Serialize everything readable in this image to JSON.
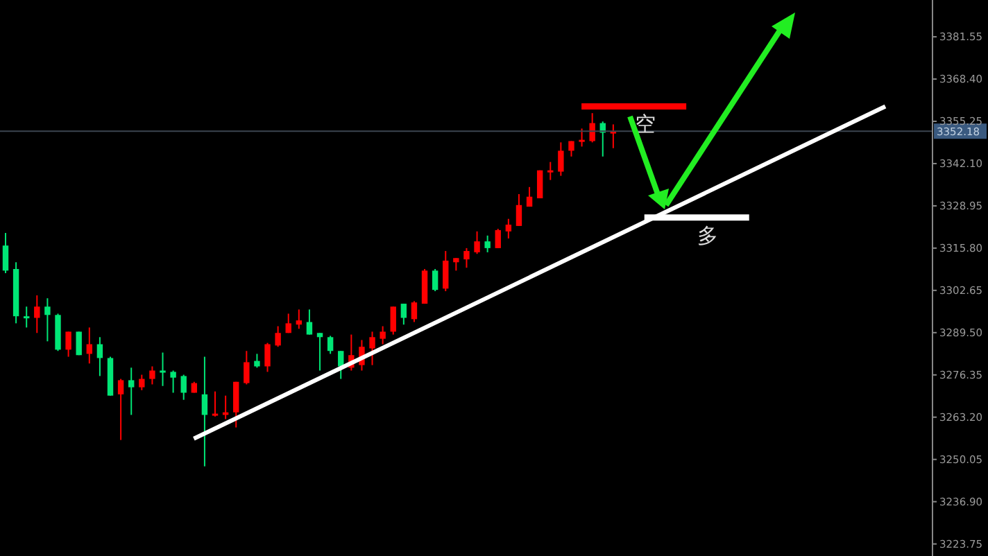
{
  "chart_data": {
    "type": "candlestick",
    "categories": [
      null,
      null,
      null,
      null,
      null,
      null,
      null,
      null,
      null,
      null,
      null,
      null,
      null,
      null,
      null,
      null,
      null,
      null,
      null,
      null,
      null,
      null,
      null,
      null,
      null,
      null,
      null,
      null,
      null,
      null,
      null,
      null,
      null,
      null,
      null,
      null,
      null,
      null,
      null,
      null,
      null,
      null,
      null,
      null,
      null,
      null,
      null,
      null,
      null,
      null,
      null,
      null,
      null,
      null,
      null,
      null,
      null,
      null,
      null,
      null,
      null,
      null,
      null,
      null,
      null,
      null,
      null,
      null,
      null,
      null,
      null,
      null,
      null,
      null,
      null,
      null,
      null,
      null,
      null,
      null,
      null,
      null,
      null,
      null,
      null,
      null,
      null,
      null,
      null
    ],
    "ohlc": [
      [
        3316.6,
        3320.5,
        3308.0,
        3308.8
      ],
      [
        3309.3,
        3311.4,
        3292.4,
        3294.6
      ],
      [
        3294.6,
        3297.6,
        3291.1,
        3294.1
      ],
      [
        3294.1,
        3301.1,
        3289.4,
        3297.6
      ],
      [
        3297.6,
        3300.2,
        3286.8,
        3295.0
      ],
      [
        3295.0,
        3295.4,
        3283.8,
        3284.2
      ],
      [
        3284.2,
        3289.8,
        3282.0,
        3289.8
      ],
      [
        3289.8,
        3289.8,
        3282.5,
        3282.5
      ],
      [
        3282.9,
        3291.1,
        3279.9,
        3285.9
      ],
      [
        3285.9,
        3288.1,
        3276.0,
        3281.6
      ],
      [
        3281.6,
        3282.0,
        3269.9,
        3269.9
      ],
      [
        3270.3,
        3275.1,
        3256.1,
        3274.7
      ],
      [
        3274.7,
        3278.6,
        3263.9,
        3272.5
      ],
      [
        3272.5,
        3276.4,
        3271.6,
        3275.1
      ],
      [
        3275.1,
        3279.0,
        3273.4,
        3277.7
      ],
      [
        3277.7,
        3283.3,
        3272.9,
        3277.3
      ],
      [
        3277.3,
        3277.7,
        3270.8,
        3275.5
      ],
      [
        3276.0,
        3276.4,
        3268.6,
        3270.8
      ],
      [
        3270.8,
        3274.2,
        3270.8,
        3273.8
      ],
      [
        3270.3,
        3282.0,
        3247.9,
        3263.9
      ],
      [
        3263.9,
        3271.2,
        3263.4,
        3264.3
      ],
      [
        3263.9,
        3269.9,
        3262.6,
        3264.7
      ],
      [
        3264.7,
        3274.2,
        3260.0,
        3274.2
      ],
      [
        3273.8,
        3283.8,
        3273.4,
        3280.3
      ],
      [
        3280.7,
        3282.9,
        3278.6,
        3279.0
      ],
      [
        3279.0,
        3286.3,
        3277.3,
        3285.9
      ],
      [
        3285.5,
        3291.5,
        3285.1,
        3289.4
      ],
      [
        3289.4,
        3295.4,
        3289.4,
        3292.4
      ],
      [
        3292.0,
        3296.7,
        3290.7,
        3293.3
      ],
      [
        3292.8,
        3296.7,
        3288.9,
        3288.9
      ],
      [
        3289.4,
        3289.4,
        3277.7,
        3288.1
      ],
      [
        3288.1,
        3288.5,
        3282.9,
        3283.8
      ],
      [
        3283.8,
        3283.8,
        3275.1,
        3279.0
      ],
      [
        3278.6,
        3288.9,
        3277.7,
        3282.5
      ],
      [
        3279.4,
        3287.2,
        3277.7,
        3285.1
      ],
      [
        3284.6,
        3289.8,
        3279.4,
        3288.1
      ],
      [
        3287.6,
        3291.5,
        3285.9,
        3289.8
      ],
      [
        3289.8,
        3297.6,
        3288.9,
        3297.6
      ],
      [
        3298.5,
        3298.5,
        3292.0,
        3294.1
      ],
      [
        3293.7,
        3299.3,
        3292.8,
        3298.9
      ],
      [
        3298.5,
        3309.3,
        3298.5,
        3308.8
      ],
      [
        3308.8,
        3309.3,
        3302.4,
        3302.8
      ],
      [
        3303.2,
        3314.9,
        3302.4,
        3311.9
      ],
      [
        3311.4,
        3312.7,
        3308.8,
        3312.7
      ],
      [
        3312.3,
        3315.8,
        3309.7,
        3314.9
      ],
      [
        3314.5,
        3321.0,
        3314.0,
        3317.9
      ],
      [
        3317.9,
        3319.7,
        3314.5,
        3315.8
      ],
      [
        3315.8,
        3321.8,
        3315.8,
        3321.4
      ],
      [
        3321.0,
        3324.9,
        3318.8,
        3323.1
      ],
      [
        3322.7,
        3332.6,
        3322.7,
        3329.2
      ],
      [
        3328.7,
        3334.8,
        3328.7,
        3331.8
      ],
      [
        3331.3,
        3340.0,
        3331.3,
        3340.0
      ],
      [
        3339.6,
        3342.6,
        3337.0,
        3340.0
      ],
      [
        3339.6,
        3348.7,
        3338.3,
        3346.1
      ],
      [
        3346.1,
        3349.1,
        3344.3,
        3349.1
      ],
      [
        3349.1,
        3353.0,
        3347.4,
        3349.5
      ],
      [
        3349.1,
        3357.8,
        3348.7,
        3354.7
      ],
      [
        3354.7,
        3355.2,
        3344.3,
        3351.7
      ],
      [
        3351.9,
        3354.3,
        3346.9,
        3352.1
      ],
      null,
      null,
      null,
      null,
      null,
      null,
      null,
      null,
      null,
      null,
      null,
      null,
      null,
      null,
      null,
      null,
      null,
      null,
      null,
      null,
      null,
      null,
      null,
      null,
      null,
      null,
      null,
      null,
      null,
      null
    ],
    "colors": [
      "#00e676",
      "#00e676",
      "#00e676",
      "#ff0000",
      "#00e676",
      "#00e676",
      "#ff0000",
      "#00e676",
      "#ff0000",
      "#00e676",
      "#00e676",
      "#ff0000",
      "#00e676",
      "#ff0000",
      "#ff0000",
      "#00e676",
      "#00e676",
      "#00e676",
      "#ff0000",
      "#00e676",
      "#ff0000",
      "#ff0000",
      "#ff0000",
      "#ff0000",
      "#00e676",
      "#ff0000",
      "#ff0000",
      "#ff0000",
      "#ff0000",
      "#00e676",
      "#00e676",
      "#00e676",
      "#00e676",
      "#ff0000",
      "#ff0000",
      "#ff0000",
      "#ff0000",
      "#ff0000",
      "#00e676",
      "#ff0000",
      "#ff0000",
      "#00e676",
      "#ff0000",
      "#ff0000",
      "#ff0000",
      "#ff0000",
      "#00e676",
      "#ff0000",
      "#ff0000",
      "#ff0000",
      "#ff0000",
      "#ff0000",
      "#ff0000",
      "#ff0000",
      "#ff0000",
      "#ff0000",
      "#ff0000",
      "#00e676",
      "#ff0000",
      null,
      null,
      null,
      null,
      null,
      null,
      null,
      null,
      null,
      null,
      null,
      null,
      null,
      null,
      null,
      null,
      null,
      null,
      null,
      null,
      null,
      null,
      null,
      null,
      null,
      null,
      null,
      null,
      null,
      null
    ],
    "series": [
      {
        "type": "line",
        "color": "#ffffff",
        "values": [
          null,
          null,
          null,
          null,
          null,
          null,
          null,
          null,
          null,
          null,
          null,
          null,
          null,
          null,
          null,
          null,
          null,
          null,
          3256.5,
          null,
          null,
          null,
          null,
          null,
          null,
          null,
          null,
          null,
          null,
          null,
          null,
          null,
          null,
          null,
          null,
          null,
          null,
          null,
          null,
          null,
          null,
          null,
          null,
          null,
          null,
          null,
          null,
          null,
          null,
          null,
          null,
          null,
          null,
          null,
          null,
          null,
          null,
          null,
          null,
          null,
          null,
          null,
          null,
          null,
          null,
          null,
          null,
          null,
          null,
          null,
          null,
          null,
          null,
          null,
          null,
          null,
          null,
          null,
          null,
          null,
          null,
          null,
          null,
          null,
          3359.9,
          null,
          null,
          null,
          null
        ]
      },
      {
        "type": "line",
        "name": "空",
        "color": "#ff0000",
        "values": [
          null,
          null,
          null,
          null,
          null,
          null,
          null,
          null,
          null,
          null,
          null,
          null,
          null,
          null,
          null,
          null,
          null,
          null,
          null,
          null,
          null,
          null,
          null,
          null,
          null,
          null,
          null,
          null,
          null,
          null,
          null,
          null,
          null,
          null,
          null,
          null,
          null,
          null,
          null,
          null,
          null,
          null,
          null,
          null,
          null,
          null,
          null,
          null,
          null,
          null,
          null,
          null,
          null,
          null,
          null,
          3359.9,
          null,
          null,
          null,
          null,
          null,
          null,
          null,
          null,
          null,
          3359.9,
          null,
          null,
          null,
          null,
          null,
          null,
          null,
          null,
          null,
          null,
          null,
          null,
          null,
          null,
          null,
          null,
          null,
          null,
          null,
          null,
          null,
          null,
          null
        ]
      },
      {
        "type": "line",
        "name": "多",
        "color": "#ffffff",
        "values": [
          null,
          null,
          null,
          null,
          null,
          null,
          null,
          null,
          null,
          null,
          null,
          null,
          null,
          null,
          null,
          null,
          null,
          null,
          null,
          null,
          null,
          null,
          null,
          null,
          null,
          null,
          null,
          null,
          null,
          null,
          null,
          null,
          null,
          null,
          null,
          null,
          null,
          null,
          null,
          null,
          null,
          null,
          null,
          null,
          null,
          null,
          null,
          null,
          null,
          null,
          null,
          null,
          null,
          null,
          null,
          null,
          null,
          null,
          null,
          null,
          null,
          3325.3,
          null,
          null,
          null,
          null,
          null,
          null,
          null,
          null,
          null,
          3325.3,
          null,
          null,
          null,
          null,
          null,
          null,
          null,
          null,
          null,
          null,
          null,
          null,
          null,
          null,
          null,
          null,
          null
        ]
      }
    ],
    "ylim": [
      3220,
      3393
    ],
    "yticks": [
      3223.75,
      {
        "value": 3236.9,
        "label": "3236.90"
      },
      3250.05,
      {
        "value": 3263.2,
        "label": "3263.20"
      },
      3276.35,
      {
        "value": 3289.5,
        "label": "3289.50"
      },
      3302.65,
      {
        "value": 3315.8,
        "label": "3315.80"
      },
      3328.95,
      {
        "value": 3342.1,
        "label": "3342.10"
      },
      3355.25,
      {
        "value": 3368.4,
        "label": "3368.40"
      },
      3381.55
    ],
    "ref_lines": [
      {
        "axis": "y",
        "value": 3352.18,
        "label": "3352.18",
        "color": "#3c4650"
      }
    ],
    "tick_labels": "y"
  }
}
